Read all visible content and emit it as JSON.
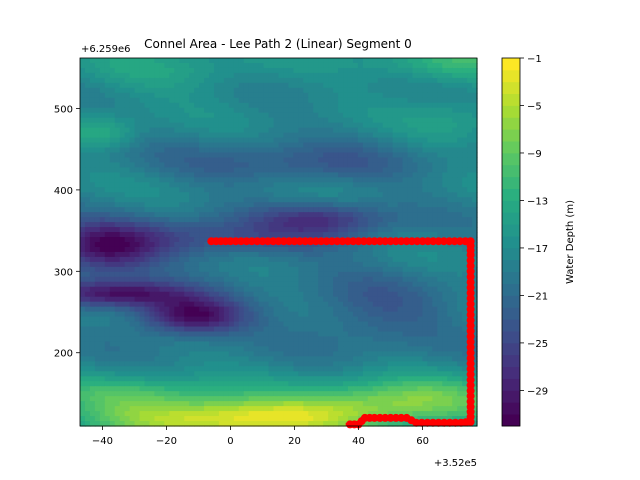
{
  "chart_data": {
    "type": "heatmap",
    "subtype": "filled-contour-with-path-overlay",
    "title": "Connel Area - Lee Path 2 (Linear) Segment 0",
    "xlabel": "",
    "ylabel": "",
    "x_offset_label": "+3.52e5",
    "y_offset_label": "+6.259e6",
    "xlim": [
      -47,
      77
    ],
    "ylim": [
      110,
      562
    ],
    "x_ticks": [
      -40,
      -20,
      0,
      20,
      40,
      60
    ],
    "y_ticks": [
      200,
      300,
      400,
      500
    ],
    "colormap": "viridis",
    "colorbar": {
      "label": "Water Depth (m)",
      "range": [
        -32,
        -1
      ],
      "ticks": [
        -1,
        -5,
        -9,
        -13,
        -17,
        -21,
        -25,
        -29
      ]
    },
    "depth_features": [
      {
        "x": 0,
        "y": 118,
        "depth": -2,
        "sx": 32,
        "sy": 18
      },
      {
        "x": 55,
        "y": 140,
        "depth": -8,
        "sx": 25,
        "sy": 20
      },
      {
        "x": -30,
        "y": 150,
        "depth": -12,
        "sx": 20,
        "sy": 16
      },
      {
        "x": -12,
        "y": 245,
        "depth": -32,
        "sx": 12,
        "sy": 16
      },
      {
        "x": -35,
        "y": 272,
        "depth": -30,
        "sx": 16,
        "sy": 12
      },
      {
        "x": -40,
        "y": 325,
        "depth": -28,
        "sx": 12,
        "sy": 22
      },
      {
        "x": -8,
        "y": 340,
        "depth": -25,
        "sx": 35,
        "sy": 18
      },
      {
        "x": 30,
        "y": 365,
        "depth": -25,
        "sx": 14,
        "sy": 14
      },
      {
        "x": 20,
        "y": 430,
        "depth": -23,
        "sx": 30,
        "sy": 18
      },
      {
        "x": 45,
        "y": 250,
        "depth": -23,
        "sx": 18,
        "sy": 30
      },
      {
        "x": 70,
        "y": 555,
        "depth": -12,
        "sx": 20,
        "sy": 20
      },
      {
        "x": -20,
        "y": 545,
        "depth": -14,
        "sx": 25,
        "sy": 20
      },
      {
        "x": -40,
        "y": 470,
        "depth": -13,
        "sx": 8,
        "sy": 14
      },
      {
        "x": 70,
        "y": 480,
        "depth": -15,
        "sx": 12,
        "sy": 25
      }
    ],
    "base_depth": -18,
    "path_color": "#ff0000",
    "path": {
      "name": "Lee Path 2 (Linear) Segment 0",
      "x": [
        -6,
        0,
        10,
        20,
        30,
        40,
        50,
        60,
        70,
        75,
        75,
        75,
        75,
        75,
        75,
        75,
        75,
        75,
        75,
        75,
        75,
        72,
        65,
        58,
        55,
        50,
        45,
        42,
        40,
        36
      ],
      "y": [
        337,
        337,
        337,
        337,
        337,
        337,
        337,
        337,
        337,
        337,
        320,
        300,
        280,
        260,
        240,
        220,
        200,
        180,
        160,
        140,
        115,
        114,
        114,
        114,
        120,
        120,
        120,
        120,
        112,
        112
      ]
    }
  }
}
